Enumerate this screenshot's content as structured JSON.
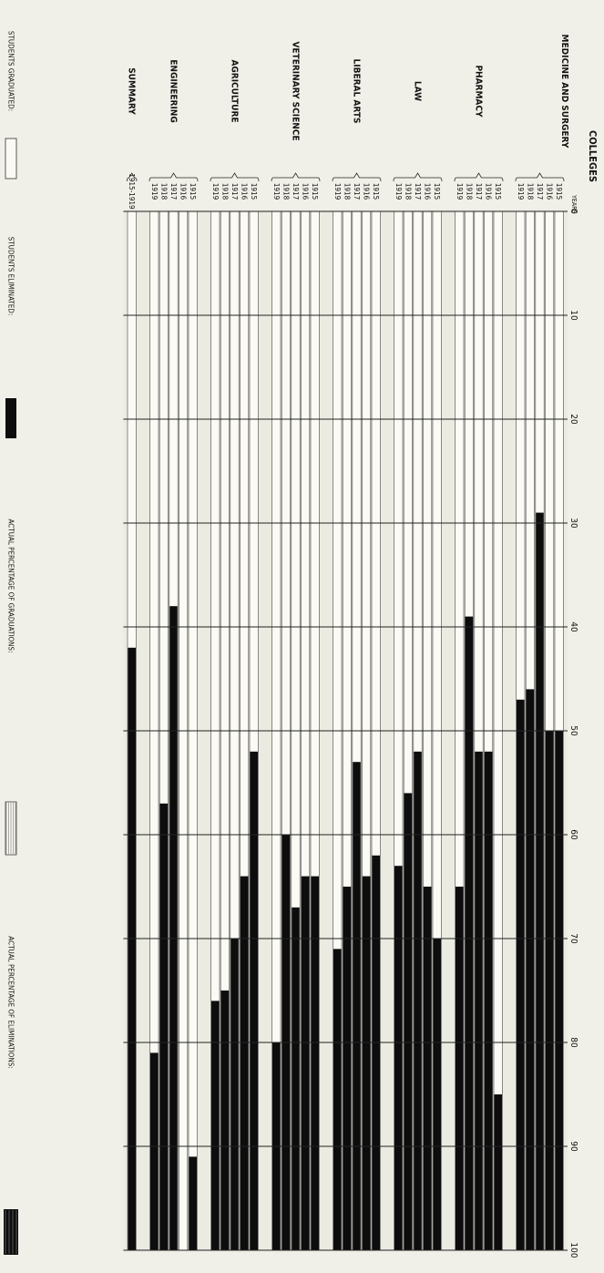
{
  "chart_data": {
    "type": "bar",
    "orientation": "horizontal",
    "rotated": "page rotated 90 degrees clockwise",
    "title": "",
    "category_header": "COLLEGES",
    "year_header": "YEARS",
    "xlim": [
      0,
      100
    ],
    "x_ticks": [
      "0",
      "10",
      "20",
      "30",
      "40",
      "50",
      "60",
      "70",
      "80",
      "90",
      "100"
    ],
    "groups": [
      {
        "name": "MEDICINE AND SURGERY",
        "rows": [
          {
            "year": "1915",
            "graduated": 50,
            "eliminated": 50
          },
          {
            "year": "1916",
            "graduated": 50,
            "eliminated": 50
          },
          {
            "year": "1917",
            "graduated": 29,
            "eliminated": 71
          },
          {
            "year": "1918",
            "graduated": 46,
            "eliminated": 54
          },
          {
            "year": "1919",
            "graduated": 47,
            "eliminated": 53
          }
        ]
      },
      {
        "name": "PHARMACY",
        "rows": [
          {
            "year": "1915",
            "graduated": 85,
            "eliminated": 15
          },
          {
            "year": "1916",
            "graduated": 52,
            "eliminated": 48
          },
          {
            "year": "1917",
            "graduated": 52,
            "eliminated": 48
          },
          {
            "year": "1918",
            "graduated": 39,
            "eliminated": 61
          },
          {
            "year": "1919",
            "graduated": 65,
            "eliminated": 35
          }
        ]
      },
      {
        "name": "LAW",
        "rows": [
          {
            "year": "1915",
            "graduated": 70,
            "eliminated": 30
          },
          {
            "year": "1916",
            "graduated": 65,
            "eliminated": 35
          },
          {
            "year": "1917",
            "graduated": 52,
            "eliminated": 48
          },
          {
            "year": "1918",
            "graduated": 56,
            "eliminated": 44
          },
          {
            "year": "1919",
            "graduated": 63,
            "eliminated": 37
          }
        ]
      },
      {
        "name": "LIBERAL ARTS",
        "rows": [
          {
            "year": "1915",
            "graduated": 62,
            "eliminated": 38
          },
          {
            "year": "1916",
            "graduated": 64,
            "eliminated": 36
          },
          {
            "year": "1917",
            "graduated": 53,
            "eliminated": 47
          },
          {
            "year": "1918",
            "graduated": 65,
            "eliminated": 35
          },
          {
            "year": "1919",
            "graduated": 71,
            "eliminated": 29
          }
        ]
      },
      {
        "name": "VETERINARY SCIENCE",
        "rows": [
          {
            "year": "1915",
            "graduated": 64,
            "eliminated": 36
          },
          {
            "year": "1916",
            "graduated": 64,
            "eliminated": 36
          },
          {
            "year": "1917",
            "graduated": 67,
            "eliminated": 33
          },
          {
            "year": "1918",
            "graduated": 60,
            "eliminated": 40
          },
          {
            "year": "1919",
            "graduated": 80,
            "eliminated": 20
          }
        ]
      },
      {
        "name": "AGRICULTURE",
        "rows": [
          {
            "year": "1915",
            "graduated": 52,
            "eliminated": 48
          },
          {
            "year": "1916",
            "graduated": 64,
            "eliminated": 36
          },
          {
            "year": "1917",
            "graduated": 70,
            "eliminated": 30
          },
          {
            "year": "1918",
            "graduated": 75,
            "eliminated": 25
          },
          {
            "year": "1919",
            "graduated": 76,
            "eliminated": 24
          }
        ]
      },
      {
        "name": "ENGINEERING",
        "rows": [
          {
            "year": "1915",
            "graduated": 91,
            "eliminated": 9
          },
          {
            "year": "1916",
            "graduated": 100,
            "eliminated": 0
          },
          {
            "year": "1917",
            "graduated": 38,
            "eliminated": 62
          },
          {
            "year": "1918",
            "graduated": 57,
            "eliminated": 43
          },
          {
            "year": "1919",
            "graduated": 81,
            "eliminated": 19
          }
        ]
      },
      {
        "name": "SUMMARY",
        "rows": [
          {
            "year": "1915-1919",
            "graduated": 42,
            "eliminated": 58
          }
        ]
      }
    ],
    "legend": [
      {
        "label": "STUDENTS GRADUATED:",
        "swatch": "white"
      },
      {
        "label": "STUDENTS ELIMINATED:",
        "swatch": "black"
      },
      {
        "label": "ACTUAL PERCENTAGE OF GRADUATIONS:",
        "swatch": "hatched"
      },
      {
        "label": "ACTUAL PERCENTAGE OF ELIMINATIONS:",
        "swatch": "hatched-dark"
      }
    ],
    "colors": {
      "graduated": "#fbfaf4",
      "eliminated": "#0d0d0d",
      "background": "#f1f0e8"
    }
  }
}
